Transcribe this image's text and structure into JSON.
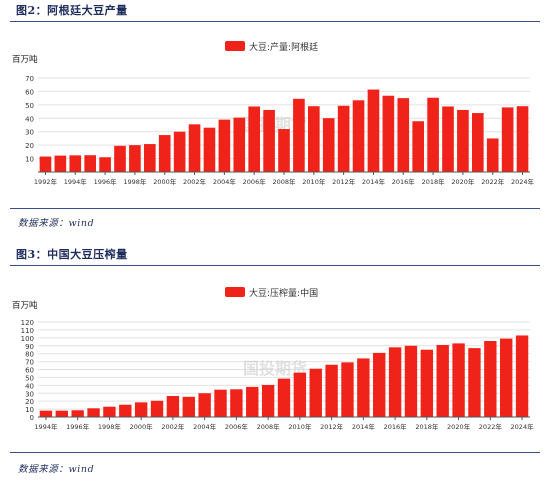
{
  "figures": [
    {
      "title": "图2：阿根廷大豆产量",
      "source": "数据来源：wind"
    },
    {
      "title": "图3：中国大豆压榨量",
      "source": "数据来源：wind"
    }
  ],
  "watermark": "国投期货",
  "colors": {
    "bar": "#f0231b",
    "heading": "#1f2d5c"
  },
  "chart_data": [
    {
      "type": "bar",
      "ylabel": "百万吨",
      "ylim": [
        0,
        70
      ],
      "yticks": [
        10,
        20,
        30,
        40,
        50,
        60,
        70
      ],
      "legend": {
        "position": "top-center",
        "entries": [
          "大豆:产量:阿根廷"
        ]
      },
      "series": [
        {
          "name": "大豆:产量:阿根廷",
          "values": [
            11.5,
            12.2,
            12.4,
            12.5,
            11.0,
            19.5,
            20.0,
            20.8,
            27.5,
            30.0,
            35.5,
            33.0,
            39.0,
            40.5,
            48.8,
            46.2,
            32.0,
            54.5,
            49.0,
            40.1,
            49.3,
            53.4,
            61.4,
            56.8,
            55.0,
            37.8,
            55.3,
            48.8,
            46.2,
            43.9,
            25.0,
            48.1,
            49.0
          ]
        }
      ],
      "categories": [
        "1992年",
        "1993年",
        "1994年",
        "1995年",
        "1996年",
        "1997年",
        "1998年",
        "1999年",
        "2000年",
        "2001年",
        "2002年",
        "2003年",
        "2004年",
        "2005年",
        "2006年",
        "2007年",
        "2008年",
        "2009年",
        "2010年",
        "2011年",
        "2012年",
        "2013年",
        "2014年",
        "2015年",
        "2016年",
        "2017年",
        "2018年",
        "2019年",
        "2020年",
        "2021年",
        "2022年",
        "2023年",
        "2024年"
      ],
      "xtick_labels": [
        "1992年",
        "1994年",
        "1996年",
        "1998年",
        "2000年",
        "2002年",
        "2004年",
        "2006年",
        "2008年",
        "2010年",
        "2012年",
        "2014年",
        "2016年",
        "2018年",
        "2020年",
        "2022年",
        "2024年"
      ]
    },
    {
      "type": "bar",
      "ylabel": "百万吨",
      "ylim": [
        0,
        120
      ],
      "yticks": [
        0,
        10,
        20,
        30,
        40,
        50,
        60,
        70,
        80,
        90,
        100,
        110,
        120
      ],
      "legend": {
        "position": "top-center",
        "entries": [
          "大豆:压榨量:中国"
        ]
      },
      "series": [
        {
          "name": "大豆:压榨量:中国",
          "values": [
            8.0,
            8.0,
            8.5,
            11.0,
            13.0,
            15.5,
            18.5,
            20.5,
            26.5,
            25.5,
            30.0,
            34.5,
            35.0,
            38.0,
            40.5,
            48.5,
            56.0,
            61.0,
            66.0,
            69.0,
            74.0,
            81.0,
            88.0,
            90.0,
            85.0,
            91.0,
            93.0,
            87.0,
            96.0,
            99.0,
            103.0
          ]
        }
      ],
      "categories": [
        "1994年",
        "1995年",
        "1996年",
        "1997年",
        "1998年",
        "1999年",
        "2000年",
        "2001年",
        "2002年",
        "2003年",
        "2004年",
        "2005年",
        "2006年",
        "2007年",
        "2008年",
        "2009年",
        "2010年",
        "2011年",
        "2012年",
        "2013年",
        "2014年",
        "2015年",
        "2016年",
        "2017年",
        "2018年",
        "2019年",
        "2020年",
        "2021年",
        "2022年",
        "2023年",
        "2024年"
      ],
      "xtick_labels": [
        "1994年",
        "1996年",
        "1998年",
        "2000年",
        "2002年",
        "2004年",
        "2006年",
        "2008年",
        "2010年",
        "2012年",
        "2014年",
        "2016年",
        "2018年",
        "2020年",
        "2022年",
        "2024年"
      ]
    }
  ]
}
